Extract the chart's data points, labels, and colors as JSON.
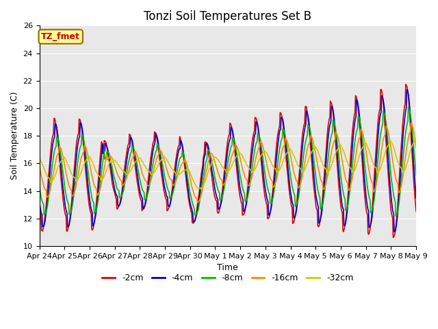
{
  "title": "Tonzi Soil Temperatures Set B",
  "xlabel": "Time",
  "ylabel": "Soil Temperature (C)",
  "ylim": [
    10,
    26
  ],
  "xtick_labels": [
    "Apr 24",
    "Apr 25",
    "Apr 26",
    "Apr 27",
    "Apr 28",
    "Apr 29",
    "Apr 30",
    "May 1",
    "May 2",
    "May 3",
    "May 4",
    "May 5",
    "May 6",
    "May 7",
    "May 8",
    "May 9"
  ],
  "annotation_text": "TZ_fmet",
  "annotation_fgcolor": "#cc0000",
  "annotation_bgcolor": "#ffff99",
  "annotation_bordercolor": "#996600",
  "bg_color": "#e8e8e8",
  "line_colors": [
    "#dd0000",
    "#0000cc",
    "#00bb00",
    "#ff8800",
    "#cccc00"
  ],
  "line_labels": [
    "-2cm",
    "-4cm",
    "-8cm",
    "-16cm",
    "-32cm"
  ],
  "line_width": 1.2,
  "title_fontsize": 12,
  "label_fontsize": 9,
  "tick_fontsize": 8
}
